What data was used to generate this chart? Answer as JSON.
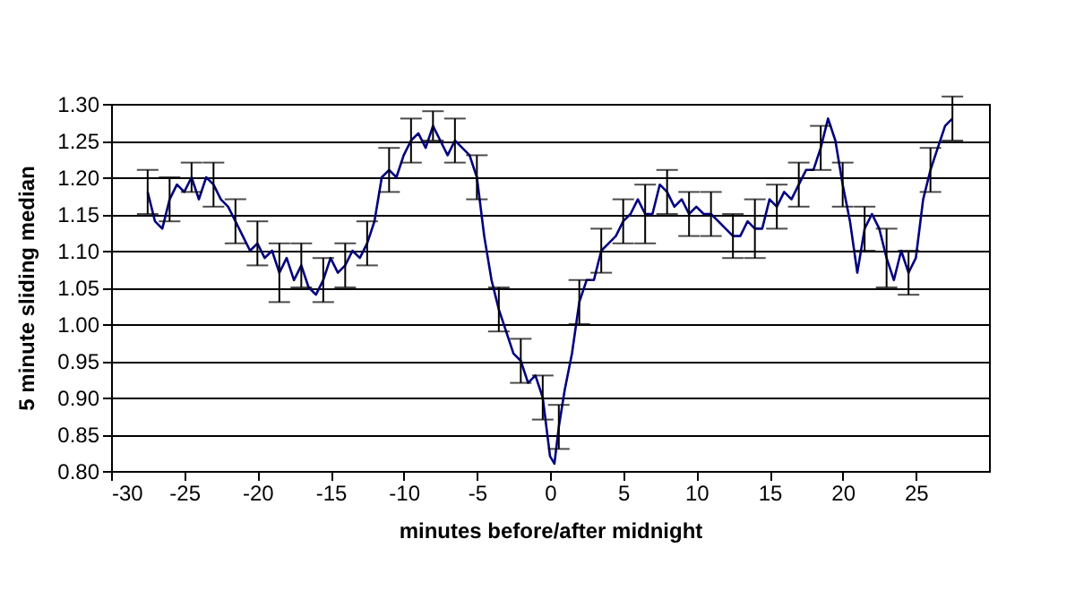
{
  "chart_data": {
    "type": "line",
    "xlabel": "minutes before/after midnight",
    "ylabel": "5 minute sliding median",
    "x": [
      -27.5,
      -27,
      -26.5,
      -26,
      -25.5,
      -25,
      -24.5,
      -24,
      -23.5,
      -23,
      -22.5,
      -22,
      -21.5,
      -21,
      -20.5,
      -20,
      -19.5,
      -19,
      -18.5,
      -18,
      -17.5,
      -17,
      -16.5,
      -16,
      -15.5,
      -15,
      -14.5,
      -14,
      -13.5,
      -13,
      -12.5,
      -12,
      -11.5,
      -11,
      -10.5,
      -10,
      -9.5,
      -9,
      -8.5,
      -8,
      -7.5,
      -7,
      -6.5,
      -6,
      -5.5,
      -5,
      -4.5,
      -4,
      -3.5,
      -3,
      -2.5,
      -2,
      -1.5,
      -1,
      -0.5,
      0,
      0.3,
      0.6,
      1,
      1.5,
      2,
      2.5,
      3,
      3.5,
      4,
      4.5,
      5,
      5.5,
      6,
      6.5,
      7,
      7.5,
      8,
      8.5,
      9,
      9.5,
      10,
      10.5,
      11,
      11.5,
      12,
      12.5,
      13,
      13.5,
      14,
      14.5,
      15,
      15.5,
      16,
      16.5,
      17,
      17.5,
      18,
      18.5,
      19,
      19.5,
      20,
      20.5,
      21,
      21.5,
      22,
      22.5,
      23,
      23.5,
      24,
      24.5,
      25,
      25.5,
      26,
      26.5,
      27,
      27.5
    ],
    "series": [
      {
        "color": "#000080",
        "values": [
          1.18,
          1.14,
          1.13,
          1.17,
          1.19,
          1.18,
          1.2,
          1.17,
          1.2,
          1.19,
          1.17,
          1.16,
          1.14,
          1.12,
          1.1,
          1.11,
          1.09,
          1.1,
          1.07,
          1.09,
          1.06,
          1.08,
          1.05,
          1.04,
          1.06,
          1.09,
          1.07,
          1.08,
          1.1,
          1.09,
          1.11,
          1.14,
          1.2,
          1.21,
          1.2,
          1.23,
          1.25,
          1.26,
          1.24,
          1.27,
          1.25,
          1.23,
          1.25,
          1.24,
          1.23,
          1.2,
          1.12,
          1.06,
          1.02,
          0.99,
          0.96,
          0.95,
          0.92,
          0.93,
          0.9,
          0.82,
          0.81,
          0.86,
          0.91,
          0.96,
          1.03,
          1.06,
          1.06,
          1.1,
          1.11,
          1.12,
          1.14,
          1.15,
          1.17,
          1.15,
          1.15,
          1.19,
          1.18,
          1.16,
          1.17,
          1.15,
          1.16,
          1.15,
          1.15,
          1.14,
          1.13,
          1.12,
          1.12,
          1.14,
          1.13,
          1.13,
          1.17,
          1.16,
          1.18,
          1.17,
          1.19,
          1.21,
          1.21,
          1.24,
          1.28,
          1.25,
          1.19,
          1.14,
          1.07,
          1.13,
          1.15,
          1.13,
          1.09,
          1.06,
          1.1,
          1.07,
          1.09,
          1.17,
          1.21,
          1.24,
          1.27,
          1.28
        ],
        "errors": [
          0.03,
          null,
          null,
          0.03,
          null,
          null,
          0.02,
          null,
          null,
          0.03,
          null,
          null,
          0.03,
          null,
          null,
          0.03,
          null,
          null,
          0.04,
          null,
          null,
          0.03,
          null,
          null,
          0.03,
          null,
          null,
          0.03,
          null,
          null,
          0.03,
          null,
          null,
          0.03,
          null,
          null,
          0.03,
          null,
          null,
          0.02,
          null,
          null,
          0.03,
          null,
          null,
          0.03,
          null,
          null,
          0.03,
          null,
          null,
          0.03,
          null,
          null,
          0.03,
          null,
          null,
          0.03,
          null,
          null,
          0.03,
          null,
          null,
          0.03,
          null,
          null,
          0.03,
          null,
          null,
          0.04,
          null,
          null,
          0.03,
          null,
          null,
          0.03,
          null,
          null,
          0.03,
          null,
          null,
          0.03,
          null,
          null,
          0.04,
          null,
          null,
          0.03,
          null,
          null,
          0.03,
          null,
          null,
          0.03,
          null,
          null,
          0.03,
          null,
          null,
          0.03,
          null,
          null,
          0.04,
          null,
          null,
          0.03,
          null,
          null,
          0.03,
          null,
          null,
          0.03
        ]
      }
    ],
    "xlim": [
      -30,
      30
    ],
    "xticks": [
      -30,
      -25,
      -20,
      -15,
      -10,
      -5,
      0,
      5,
      10,
      15,
      20,
      25
    ],
    "ylim": [
      0.8,
      1.3
    ],
    "yticks": [
      {
        "value": 0.8,
        "label": "0.80"
      },
      0.85,
      {
        "value": 0.9,
        "label": "0.90"
      },
      0.95,
      {
        "value": 1.0,
        "label": "1.00"
      },
      1.05,
      {
        "value": 1.1,
        "label": "1.10"
      },
      1.15,
      {
        "value": 1.2,
        "label": "1.20"
      },
      1.25,
      {
        "value": 1.3,
        "label": "1.30"
      }
    ],
    "grid": "y"
  }
}
